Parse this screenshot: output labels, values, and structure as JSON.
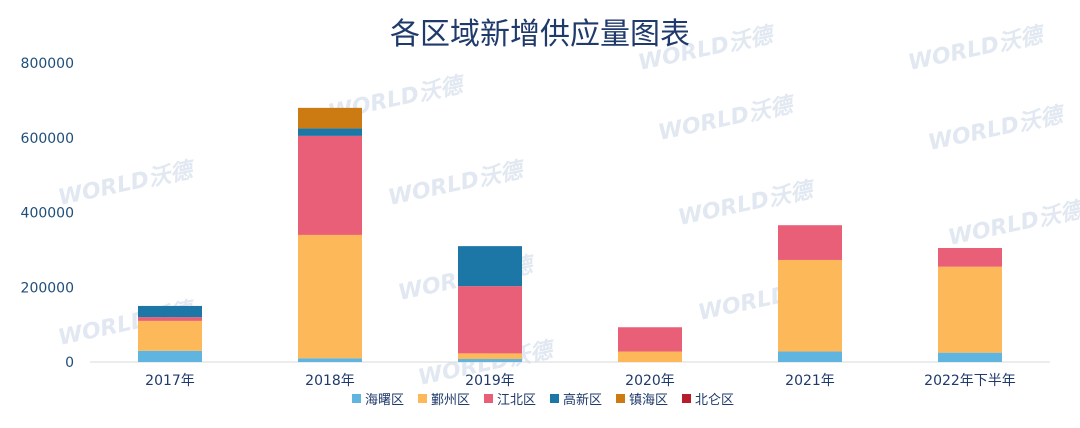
{
  "chart_data": {
    "type": "bar",
    "stacked": true,
    "title": "各区域新增供应量图表",
    "categories": [
      "2017年",
      "2018年",
      "2019年",
      "2020年",
      "2021年",
      "2022年下半年"
    ],
    "series": [
      {
        "name": "海曙区",
        "color": "#5fb4e0",
        "values": [
          30000,
          10000,
          8000,
          0,
          28000,
          25000
        ]
      },
      {
        "name": "鄞州区",
        "color": "#fdb85a",
        "values": [
          80000,
          330000,
          15000,
          28000,
          245000,
          230000
        ]
      },
      {
        "name": "江北区",
        "color": "#ea5f78",
        "values": [
          10000,
          265000,
          180000,
          65000,
          93000,
          50000
        ]
      },
      {
        "name": "高新区",
        "color": "#1c77a6",
        "values": [
          30000,
          20000,
          107000,
          0,
          0,
          0
        ]
      },
      {
        "name": "镇海区",
        "color": "#cc7a12",
        "values": [
          0,
          55000,
          0,
          0,
          0,
          0
        ]
      },
      {
        "name": "北仑区",
        "color": "#b71c2c",
        "values": [
          0,
          0,
          0,
          0,
          0,
          0
        ]
      }
    ],
    "yticks": [
      0,
      200000,
      400000,
      600000,
      800000
    ],
    "ylim": [
      0,
      800000
    ],
    "grid": false,
    "legend_position": "bottom"
  },
  "watermark": {
    "text_en": "WORLD",
    "text_cn": "沃德"
  }
}
